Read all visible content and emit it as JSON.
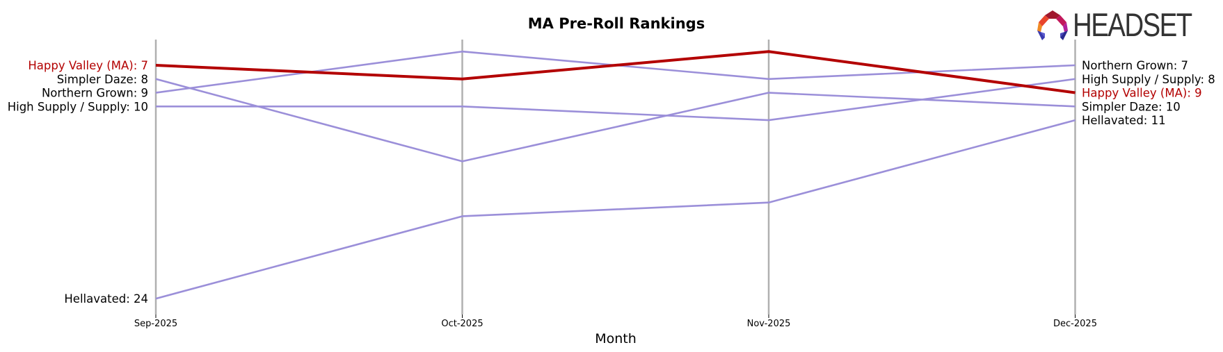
{
  "chart_data": {
    "type": "line",
    "title": "MA Pre-Roll Rankings",
    "xlabel": "Month",
    "ylabel": "",
    "categories": [
      "Sep-2025",
      "Oct-2025",
      "Nov-2025",
      "Dec-2025"
    ],
    "y_inverted": true,
    "ylim": [
      24,
      6
    ],
    "grid": false,
    "legend": "none (inline labels at start and end)",
    "highlight_color": "#b30000",
    "series_color": "#9b8fd9",
    "axis_color": "#b0b0b0",
    "series": [
      {
        "name": "Happy Valley (MA)",
        "values": [
          7,
          8,
          6,
          9
        ],
        "highlight": true
      },
      {
        "name": "Simpler Daze",
        "values": [
          8,
          14,
          9,
          10
        ],
        "highlight": false
      },
      {
        "name": "Northern Grown",
        "values": [
          9,
          6,
          8,
          7
        ],
        "highlight": false
      },
      {
        "name": "High Supply / Supply",
        "values": [
          10,
          10,
          11,
          8
        ],
        "highlight": false
      },
      {
        "name": "Hellavated",
        "values": [
          24,
          18,
          17,
          11
        ],
        "highlight": false
      }
    ],
    "start_labels": [
      "Happy Valley (MA): 7",
      "Simpler Daze: 8",
      "Northern Grown: 9",
      "High Supply / Supply: 10",
      "Hellavated: 24"
    ],
    "end_labels": [
      "Northern Grown: 7",
      "High Supply / Supply: 8",
      "Happy Valley (MA): 9",
      "Simpler Daze: 10",
      "Hellavated: 11"
    ]
  },
  "branding": {
    "logo_text": "HEADSET"
  }
}
